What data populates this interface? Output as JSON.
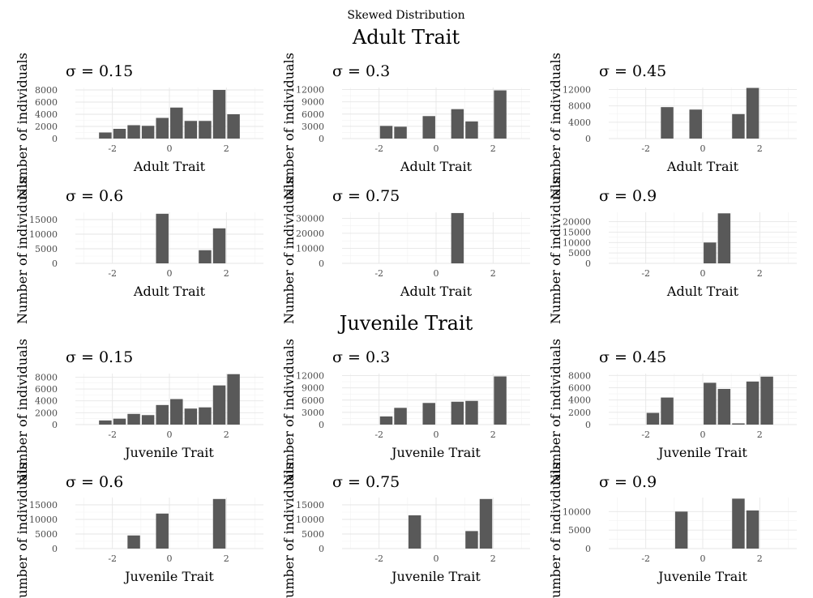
{
  "figure": {
    "main_title": "Skewed Distribution",
    "sections": [
      {
        "title": "Adult Trait"
      },
      {
        "title": "Juvenile Trait"
      }
    ]
  },
  "chart_data": [
    {
      "type": "bar",
      "section": 0,
      "title": "σ = 0.15",
      "xlabel": "Adult Trait",
      "ylabel": "Number of individuals",
      "xlim": [
        -3.3,
        3.3
      ],
      "xticks": [
        -2,
        0,
        2
      ],
      "ylim": [
        0,
        8400
      ],
      "yticks": [
        0,
        2000,
        4000,
        6000,
        8000
      ],
      "x": [
        -2.25,
        -1.75,
        -1.25,
        -0.75,
        -0.25,
        0.25,
        0.75,
        1.25,
        1.75,
        2.25
      ],
      "values": [
        1000,
        1600,
        2200,
        2100,
        3400,
        5100,
        2900,
        2900,
        8000,
        4000
      ]
    },
    {
      "type": "bar",
      "section": 0,
      "title": "σ = 0.3",
      "xlabel": "Adult Trait",
      "ylabel": "Number of individuals",
      "xlim": [
        -3.3,
        3.3
      ],
      "xticks": [
        -2,
        0,
        2
      ],
      "ylim": [
        0,
        12500
      ],
      "yticks": [
        0,
        3000,
        6000,
        9000,
        12000
      ],
      "x": [
        -1.75,
        -1.25,
        -0.25,
        0.75,
        1.25,
        2.25
      ],
      "values": [
        3100,
        2900,
        5500,
        7200,
        4200,
        11800
      ]
    },
    {
      "type": "bar",
      "section": 0,
      "title": "σ = 0.45",
      "xlabel": "Adult Trait",
      "ylabel": "Number of individuals",
      "xlim": [
        -3.3,
        3.3
      ],
      "xticks": [
        -2,
        0,
        2
      ],
      "ylim": [
        0,
        12500
      ],
      "yticks": [
        0,
        4000,
        8000,
        12000
      ],
      "x": [
        -1.25,
        -0.25,
        1.25,
        1.75
      ],
      "values": [
        7700,
        7100,
        6000,
        12400
      ]
    },
    {
      "type": "bar",
      "section": 0,
      "title": "σ = 0.6",
      "xlabel": "Adult Trait",
      "ylabel": "Number of individuals",
      "xlim": [
        -3.3,
        3.3
      ],
      "xticks": [
        -2,
        0,
        2
      ],
      "ylim": [
        0,
        17500
      ],
      "yticks": [
        0,
        5000,
        10000,
        15000
      ],
      "x": [
        -0.25,
        1.25,
        1.75
      ],
      "values": [
        17000,
        4500,
        12000
      ]
    },
    {
      "type": "bar",
      "section": 0,
      "title": "σ = 0.75",
      "xlabel": "Adult Trait",
      "ylabel": "Number of individuals",
      "xlim": [
        -3.3,
        3.3
      ],
      "xticks": [
        -2,
        0,
        2
      ],
      "ylim": [
        0,
        34000
      ],
      "yticks": [
        0,
        10000,
        20000,
        30000
      ],
      "x": [
        0.75
      ],
      "values": [
        33500
      ]
    },
    {
      "type": "bar",
      "section": 0,
      "title": "σ = 0.9",
      "xlabel": "Adult Trait",
      "ylabel": "Number of individuals",
      "xlim": [
        -3.3,
        3.3
      ],
      "xticks": [
        -2,
        0,
        2
      ],
      "ylim": [
        0,
        24500
      ],
      "yticks": [
        0,
        5000,
        10000,
        15000,
        20000
      ],
      "x": [
        0.25,
        0.75
      ],
      "values": [
        10000,
        24000
      ]
    },
    {
      "type": "bar",
      "section": 1,
      "title": "σ = 0.15",
      "xlabel": "Juvenile Trait",
      "ylabel": "Number of individuals",
      "xlim": [
        -3.3,
        3.3
      ],
      "xticks": [
        -2,
        0,
        2
      ],
      "ylim": [
        0,
        8600
      ],
      "yticks": [
        0,
        2000,
        4000,
        6000,
        8000
      ],
      "x": [
        -2.25,
        -1.75,
        -1.25,
        -0.75,
        -0.25,
        0.25,
        0.75,
        1.25,
        1.75,
        2.25
      ],
      "values": [
        700,
        1000,
        1800,
        1600,
        3300,
        4300,
        2700,
        2900,
        6600,
        8500
      ]
    },
    {
      "type": "bar",
      "section": 1,
      "title": "σ = 0.3",
      "xlabel": "Juvenile Trait",
      "ylabel": "Number of individuals",
      "xlim": [
        -3.3,
        3.3
      ],
      "xticks": [
        -2,
        0,
        2
      ],
      "ylim": [
        0,
        12500
      ],
      "yticks": [
        0,
        3000,
        6000,
        9000,
        12000
      ],
      "x": [
        -1.75,
        -1.25,
        -0.25,
        0.75,
        1.25,
        2.25
      ],
      "values": [
        2000,
        4100,
        5300,
        5600,
        5800,
        11800
      ]
    },
    {
      "type": "bar",
      "section": 1,
      "title": "σ = 0.45",
      "xlabel": "Juvenile Trait",
      "ylabel": "Number of individuals",
      "xlim": [
        -3.3,
        3.3
      ],
      "xticks": [
        -2,
        0,
        2
      ],
      "ylim": [
        0,
        8300
      ],
      "yticks": [
        0,
        2000,
        4000,
        6000,
        8000
      ],
      "x": [
        -1.75,
        -1.25,
        0.25,
        0.75,
        1.25,
        1.75,
        2.25
      ],
      "values": [
        1900,
        4400,
        6800,
        5800,
        200,
        7000,
        7800
      ]
    },
    {
      "type": "bar",
      "section": 1,
      "title": "σ = 0.6",
      "xlabel": "Juvenile Trait",
      "ylabel": "Number of individuals",
      "xlim": [
        -3.3,
        3.3
      ],
      "xticks": [
        -2,
        0,
        2
      ],
      "ylim": [
        0,
        17500
      ],
      "yticks": [
        0,
        5000,
        10000,
        15000
      ],
      "x": [
        -1.25,
        -0.25,
        1.75
      ],
      "values": [
        4500,
        12000,
        17000
      ]
    },
    {
      "type": "bar",
      "section": 1,
      "title": "σ = 0.75",
      "xlabel": "Juvenile Trait",
      "ylabel": "Number of individuals",
      "xlim": [
        -3.3,
        3.3
      ],
      "xticks": [
        -2,
        0,
        2
      ],
      "ylim": [
        0,
        17500
      ],
      "yticks": [
        0,
        5000,
        10000,
        15000
      ],
      "x": [
        -0.75,
        1.25,
        1.75
      ],
      "values": [
        11400,
        6000,
        17000
      ]
    },
    {
      "type": "bar",
      "section": 1,
      "title": "σ = 0.9",
      "xlabel": "Juvenile Trait",
      "ylabel": "Number of individuals",
      "xlim": [
        -3.3,
        3.3
      ],
      "xticks": [
        -2,
        0,
        2
      ],
      "ylim": [
        0,
        13800
      ],
      "yticks": [
        0,
        5000,
        10000
      ],
      "x": [
        -0.75,
        1.25,
        1.75
      ],
      "values": [
        10000,
        13500,
        10300
      ]
    }
  ]
}
